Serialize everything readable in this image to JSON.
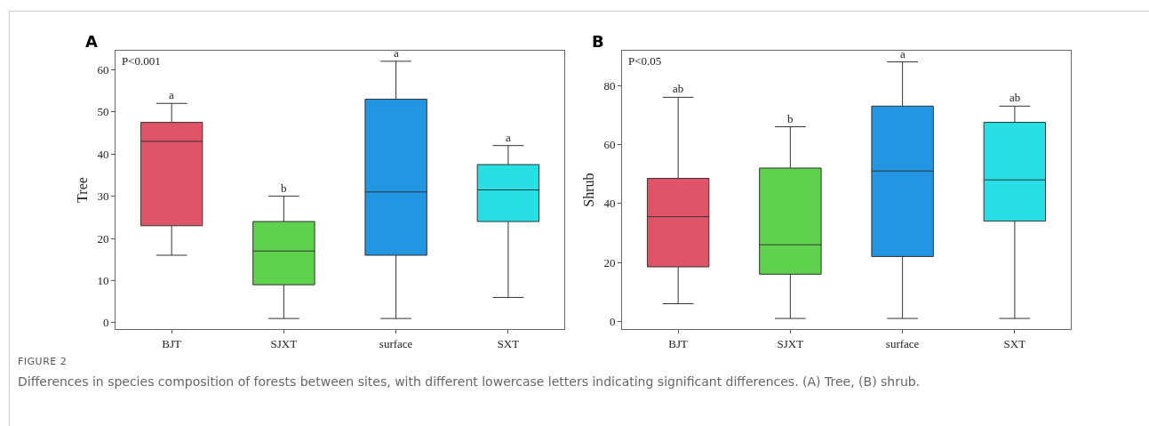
{
  "chart_data": [
    {
      "type": "box",
      "title": "A",
      "ylabel": "Tree",
      "categories": [
        "BJT",
        "SJXT",
        "surface",
        "SXT"
      ],
      "colors": [
        "#e05468",
        "#5fd14d",
        "#2396e3",
        "#28e0e3"
      ],
      "boxes": [
        {
          "low": 16,
          "q1": 23,
          "median": 43,
          "q3": 47.5,
          "high": 52
        },
        {
          "low": 1,
          "q1": 9,
          "median": 17,
          "q3": 24,
          "high": 30
        },
        {
          "low": 1,
          "q1": 16,
          "median": 31,
          "q3": 53,
          "high": 62
        },
        {
          "low": 6,
          "q1": 24,
          "median": 31.5,
          "q3": 37.5,
          "high": 42
        }
      ],
      "ylim": [
        -1.5,
        64.5
      ],
      "yticks": [
        0,
        10,
        20,
        30,
        40,
        50,
        60
      ],
      "grid": false,
      "annotations": [
        "P<0.001",
        {
          "text": "a",
          "x": "BJT",
          "y": 52
        },
        {
          "text": "b",
          "x": "SJXT",
          "y": 30
        },
        {
          "text": "a",
          "x": "surface",
          "y": 62
        },
        {
          "text": "a",
          "x": "SXT",
          "y": 42
        },
        "FIGURE 2",
        "Differences in species composition of forests between sites, with different lowercase letters indicating significant differences. (A) Tree, (B) shrub."
      ]
    },
    {
      "type": "box",
      "title": "B",
      "ylabel": "Shrub",
      "categories": [
        "BJT",
        "SJXT",
        "surface",
        "SXT"
      ],
      "colors": [
        "#e05468",
        "#5fd14d",
        "#2396e3",
        "#28e0e3"
      ],
      "boxes": [
        {
          "low": 6,
          "q1": 18.5,
          "median": 35.5,
          "q3": 48.5,
          "high": 76
        },
        {
          "low": 1,
          "q1": 16,
          "median": 26,
          "q3": 52,
          "high": 66
        },
        {
          "low": 1,
          "q1": 22,
          "median": 51,
          "q3": 73,
          "high": 88
        },
        {
          "low": 1,
          "q1": 34,
          "median": 48,
          "q3": 67.5,
          "high": 73
        }
      ],
      "ylim": [
        -2.6,
        91.8
      ],
      "yticks": [
        0,
        20,
        40,
        60,
        80
      ],
      "grid": false,
      "annotations": [
        "P<0.05",
        {
          "text": "ab",
          "x": "BJT",
          "y": 76
        },
        {
          "text": "b",
          "x": "SJXT",
          "y": 66
        },
        {
          "text": "a",
          "x": "surface",
          "y": 88
        },
        {
          "text": "ab",
          "x": "SXT",
          "y": 73
        }
      ]
    }
  ]
}
